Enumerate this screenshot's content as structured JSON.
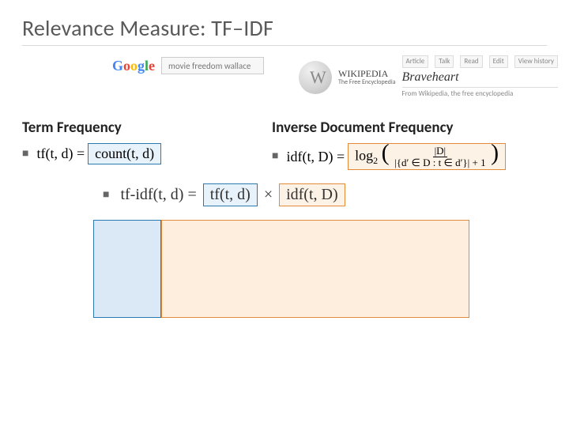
{
  "title_prefix": "Relevance Measure: ",
  "title_tf": "TF",
  "title_dash": "–",
  "title_idf": "IDF",
  "google": {
    "letters": [
      "G",
      "o",
      "o",
      "g",
      "l",
      "e"
    ],
    "search_text": "movie freedom wallace"
  },
  "wikipedia": {
    "name": "WIKIPEDIA",
    "tagline": "The Free Encyclopedia",
    "tabs": [
      "Article",
      "Talk",
      "Read",
      "Edit",
      "View history"
    ],
    "article_title": "Braveheart",
    "subline": "From Wikipedia, the free encyclopedia"
  },
  "tf": {
    "heading": "Term Frequency",
    "lhs": "tf(t, d) = ",
    "rhs": "count(t, d)"
  },
  "idf": {
    "heading": "Inverse Document Frequency",
    "lhs": "idf(t, D) = ",
    "log": "log",
    "log_base": "2",
    "frac_num": "|D|",
    "frac_den": "|{d′ ∈ D : t ∈ d′}| + 1"
  },
  "tfidf": {
    "lhs": "tf-idf(t, d) = ",
    "tf_term": "tf(t, d)",
    "times": "×",
    "idf_term": "idf(t, D)"
  },
  "colors": {
    "blue_border": "#2a7ab0",
    "blue_fill": "#e8f2fa",
    "orange_border": "#e38b3b",
    "orange_fill": "#fdf2e6",
    "big_blue_fill": "#dbe9f6",
    "big_orange_fill": "#fdeedd"
  },
  "layout": {
    "big_blue_w": 86,
    "big_blue_h": 124,
    "big_orange_w": 390,
    "big_orange_h": 124
  }
}
